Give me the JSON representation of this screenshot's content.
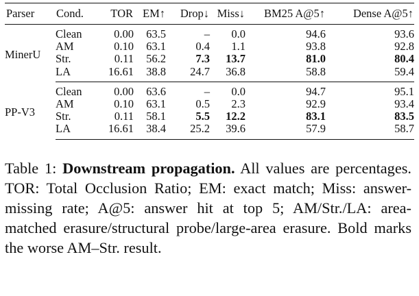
{
  "table": {
    "headers": [
      "Parser",
      "Cond.",
      "TOR",
      "EM↑",
      "Drop↓",
      "Miss↓",
      "BM25 A@5↑",
      "Dense A@5↑"
    ],
    "groups": [
      {
        "parser": "MinerU",
        "rows": [
          {
            "cond": "Clean",
            "tor": "0.00",
            "em": "63.5",
            "drop": "–",
            "miss": "0.0",
            "bm25": "94.6",
            "dense": "93.6"
          },
          {
            "cond": "AM",
            "tor": "0.10",
            "em": "63.1",
            "drop": "0.4",
            "miss": "1.1",
            "bm25": "93.8",
            "dense": "92.8"
          },
          {
            "cond": "Str.",
            "tor": "0.11",
            "em": "56.2",
            "drop": "7.3",
            "miss": "13.7",
            "bm25": "81.0",
            "dense": "80.4"
          },
          {
            "cond": "LA",
            "tor": "16.61",
            "em": "38.8",
            "drop": "24.7",
            "miss": "36.8",
            "bm25": "58.8",
            "dense": "59.4"
          }
        ]
      },
      {
        "parser": "PP-V3",
        "rows": [
          {
            "cond": "Clean",
            "tor": "0.00",
            "em": "63.6",
            "drop": "–",
            "miss": "0.0",
            "bm25": "94.7",
            "dense": "95.1"
          },
          {
            "cond": "AM",
            "tor": "0.10",
            "em": "63.1",
            "drop": "0.5",
            "miss": "2.3",
            "bm25": "92.9",
            "dense": "93.4"
          },
          {
            "cond": "Str.",
            "tor": "0.11",
            "em": "58.1",
            "drop": "5.5",
            "miss": "12.2",
            "bm25": "83.1",
            "dense": "83.5"
          },
          {
            "cond": "LA",
            "tor": "16.61",
            "em": "38.4",
            "drop": "25.2",
            "miss": "39.6",
            "bm25": "57.9",
            "dense": "58.7"
          }
        ]
      }
    ]
  },
  "caption": {
    "label": "Table 1: ",
    "title": "Downstream propagation.",
    "body": " All values are percentages. TOR: Total Occlusion Ratio; EM: exact match; Miss: answer-missing rate; A@5: answer hit at top 5; AM/Str./LA: area-matched erasure/structural probe/large-area erasure. Bold marks the worse AM–Str. result."
  }
}
